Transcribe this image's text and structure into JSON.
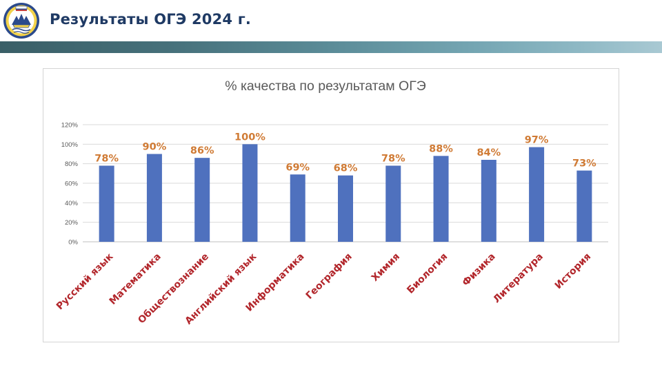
{
  "slide": {
    "title": "Результаты ОГЭ 2024 г."
  },
  "colors": {
    "bar": "#4f71be",
    "value_label": "#d07b35",
    "category_label": "#b2262b",
    "title_text": "#1f3a64"
  },
  "chart_data": {
    "type": "bar",
    "title": "% качества по результатам ОГЭ",
    "categories": [
      "Русский язык",
      "Математика",
      "Обществознание",
      "Английский язык",
      "Информатика",
      "География",
      "Химия",
      "Биология",
      "Физика",
      "Литература",
      "История"
    ],
    "values": [
      78,
      90,
      86,
      100,
      69,
      68,
      78,
      88,
      84,
      97,
      73
    ],
    "value_labels": [
      "78%",
      "90%",
      "86%",
      "100%",
      "69%",
      "68%",
      "78%",
      "88%",
      "84%",
      "97%",
      "73%"
    ],
    "y_ticks": [
      "0%",
      "20%",
      "40%",
      "60%",
      "80%",
      "100%",
      "120%"
    ],
    "ylim": [
      0,
      120
    ],
    "grid": true,
    "legend": "none"
  }
}
